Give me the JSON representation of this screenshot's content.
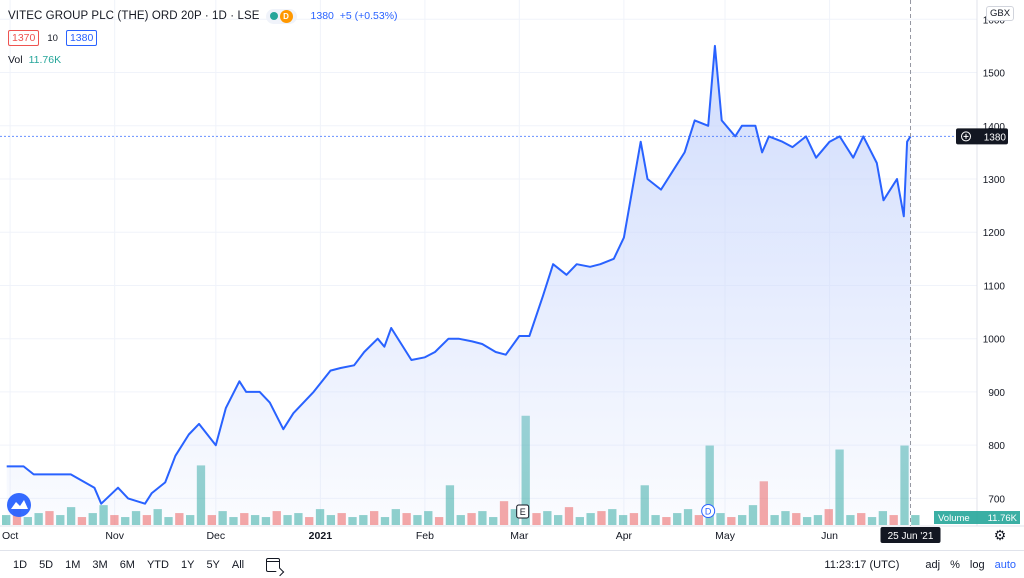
{
  "legend": {
    "symbol": "VITEC GROUP PLC (THE) ORD 20P · 1D · LSE",
    "badge_label": "D",
    "last_price": "1380",
    "change": "+5 (+0.53%)",
    "bid": "1370",
    "spread": "10",
    "ask": "1380",
    "vol_label": "Vol",
    "vol_value": "11.76K"
  },
  "price_axis": {
    "currency": "GBX",
    "current_price_label": "1380",
    "volume_label": "Volume",
    "volume_value": "11.76K"
  },
  "time_axis": {
    "hover_date": "25 Jun '21"
  },
  "event_markers": {
    "earnings": "E",
    "dividend": "D"
  },
  "bottom_bar": {
    "ranges": [
      "1D",
      "5D",
      "1M",
      "3M",
      "6M",
      "YTD",
      "1Y",
      "5Y",
      "All"
    ],
    "clock": "11:23:17 (UTC)",
    "adj": "adj",
    "percent": "%",
    "log": "log",
    "auto": "auto"
  },
  "colors": {
    "line": "#2962ff",
    "fill": "#c8d6fc",
    "vol_up": "#26a69a",
    "vol_down": "#ef5350",
    "text": "#131722",
    "grid": "#f0f3fa"
  },
  "chart_data": {
    "type": "area",
    "title": "",
    "xlabel": "",
    "ylabel": "",
    "x_ticks": [
      "Oct",
      "Nov",
      "Dec",
      "2021",
      "Feb",
      "Mar",
      "Apr",
      "May",
      "Jun"
    ],
    "y_ticks": [
      700,
      800,
      900,
      1000,
      1100,
      1200,
      1300,
      1400,
      1500,
      1600
    ],
    "ylim": [
      650,
      1625
    ],
    "grid": true,
    "series": [
      {
        "name": "",
        "x": [
          "2020-09-30",
          "2020-10-05",
          "2020-10-08",
          "2020-10-12",
          "2020-10-19",
          "2020-10-26",
          "2020-10-28",
          "2020-11-02",
          "2020-11-05",
          "2020-11-10",
          "2020-11-12",
          "2020-11-16",
          "2020-11-19",
          "2020-11-23",
          "2020-11-26",
          "2020-12-01",
          "2020-12-04",
          "2020-12-08",
          "2020-12-10",
          "2020-12-14",
          "2020-12-17",
          "2020-12-21",
          "2020-12-24",
          "2020-12-30",
          "2021-01-04",
          "2021-01-07",
          "2021-01-11",
          "2021-01-14",
          "2021-01-18",
          "2021-01-20",
          "2021-01-22",
          "2021-01-25",
          "2021-01-28",
          "2021-02-01",
          "2021-02-04",
          "2021-02-08",
          "2021-02-11",
          "2021-02-15",
          "2021-02-18",
          "2021-02-22",
          "2021-02-25",
          "2021-03-01",
          "2021-03-04",
          "2021-03-08",
          "2021-03-11",
          "2021-03-15",
          "2021-03-18",
          "2021-03-22",
          "2021-03-25",
          "2021-03-29",
          "2021-04-01",
          "2021-04-06",
          "2021-04-08",
          "2021-04-12",
          "2021-04-15",
          "2021-04-19",
          "2021-04-22",
          "2021-04-26",
          "2021-04-28",
          "2021-04-30",
          "2021-05-04",
          "2021-05-06",
          "2021-05-10",
          "2021-05-12",
          "2021-05-14",
          "2021-05-18",
          "2021-05-21",
          "2021-05-25",
          "2021-05-28",
          "2021-06-01",
          "2021-06-04",
          "2021-06-08",
          "2021-06-11",
          "2021-06-15",
          "2021-06-17",
          "2021-06-21",
          "2021-06-23",
          "2021-06-24",
          "2021-06-25"
        ],
        "values": [
          760,
          760,
          745,
          745,
          745,
          720,
          690,
          720,
          700,
          690,
          710,
          730,
          780,
          820,
          840,
          800,
          870,
          920,
          900,
          900,
          880,
          830,
          860,
          900,
          940,
          945,
          950,
          975,
          1000,
          985,
          1020,
          990,
          960,
          965,
          975,
          1000,
          1000,
          995,
          990,
          975,
          970,
          1005,
          1005,
          1080,
          1140,
          1120,
          1140,
          1135,
          1140,
          1150,
          1190,
          1370,
          1300,
          1280,
          1310,
          1350,
          1410,
          1400,
          1550,
          1410,
          1380,
          1400,
          1400,
          1350,
          1380,
          1370,
          1360,
          1380,
          1340,
          1370,
          1380,
          1340,
          1380,
          1330,
          1260,
          1300,
          1230,
          1370,
          1380
        ]
      }
    ],
    "volume_series": {
      "name": "Volume",
      "note_values": "relative heights 0-1 of volume bars, sampled",
      "values": [
        0.05,
        0.08,
        0.04,
        0.06,
        0.07,
        0.05,
        0.09,
        0.04,
        0.06,
        0.1,
        0.05,
        0.04,
        0.07,
        0.05,
        0.08,
        0.04,
        0.06,
        0.05,
        0.3,
        0.05,
        0.07,
        0.04,
        0.06,
        0.05,
        0.04,
        0.07,
        0.05,
        0.06,
        0.04,
        0.08,
        0.05,
        0.06,
        0.04,
        0.05,
        0.07,
        0.04,
        0.08,
        0.06,
        0.05,
        0.07,
        0.04,
        0.2,
        0.05,
        0.06,
        0.07,
        0.04,
        0.12,
        0.08,
        0.55,
        0.06,
        0.07,
        0.05,
        0.09,
        0.04,
        0.06,
        0.07,
        0.08,
        0.05,
        0.06,
        0.2,
        0.05,
        0.04,
        0.06,
        0.08,
        0.05,
        0.4,
        0.06,
        0.04,
        0.05,
        0.1,
        0.22,
        0.05,
        0.07,
        0.06,
        0.04,
        0.05,
        0.08,
        0.38,
        0.05,
        0.06,
        0.04,
        0.07,
        0.05,
        0.4,
        0.05
      ]
    }
  }
}
